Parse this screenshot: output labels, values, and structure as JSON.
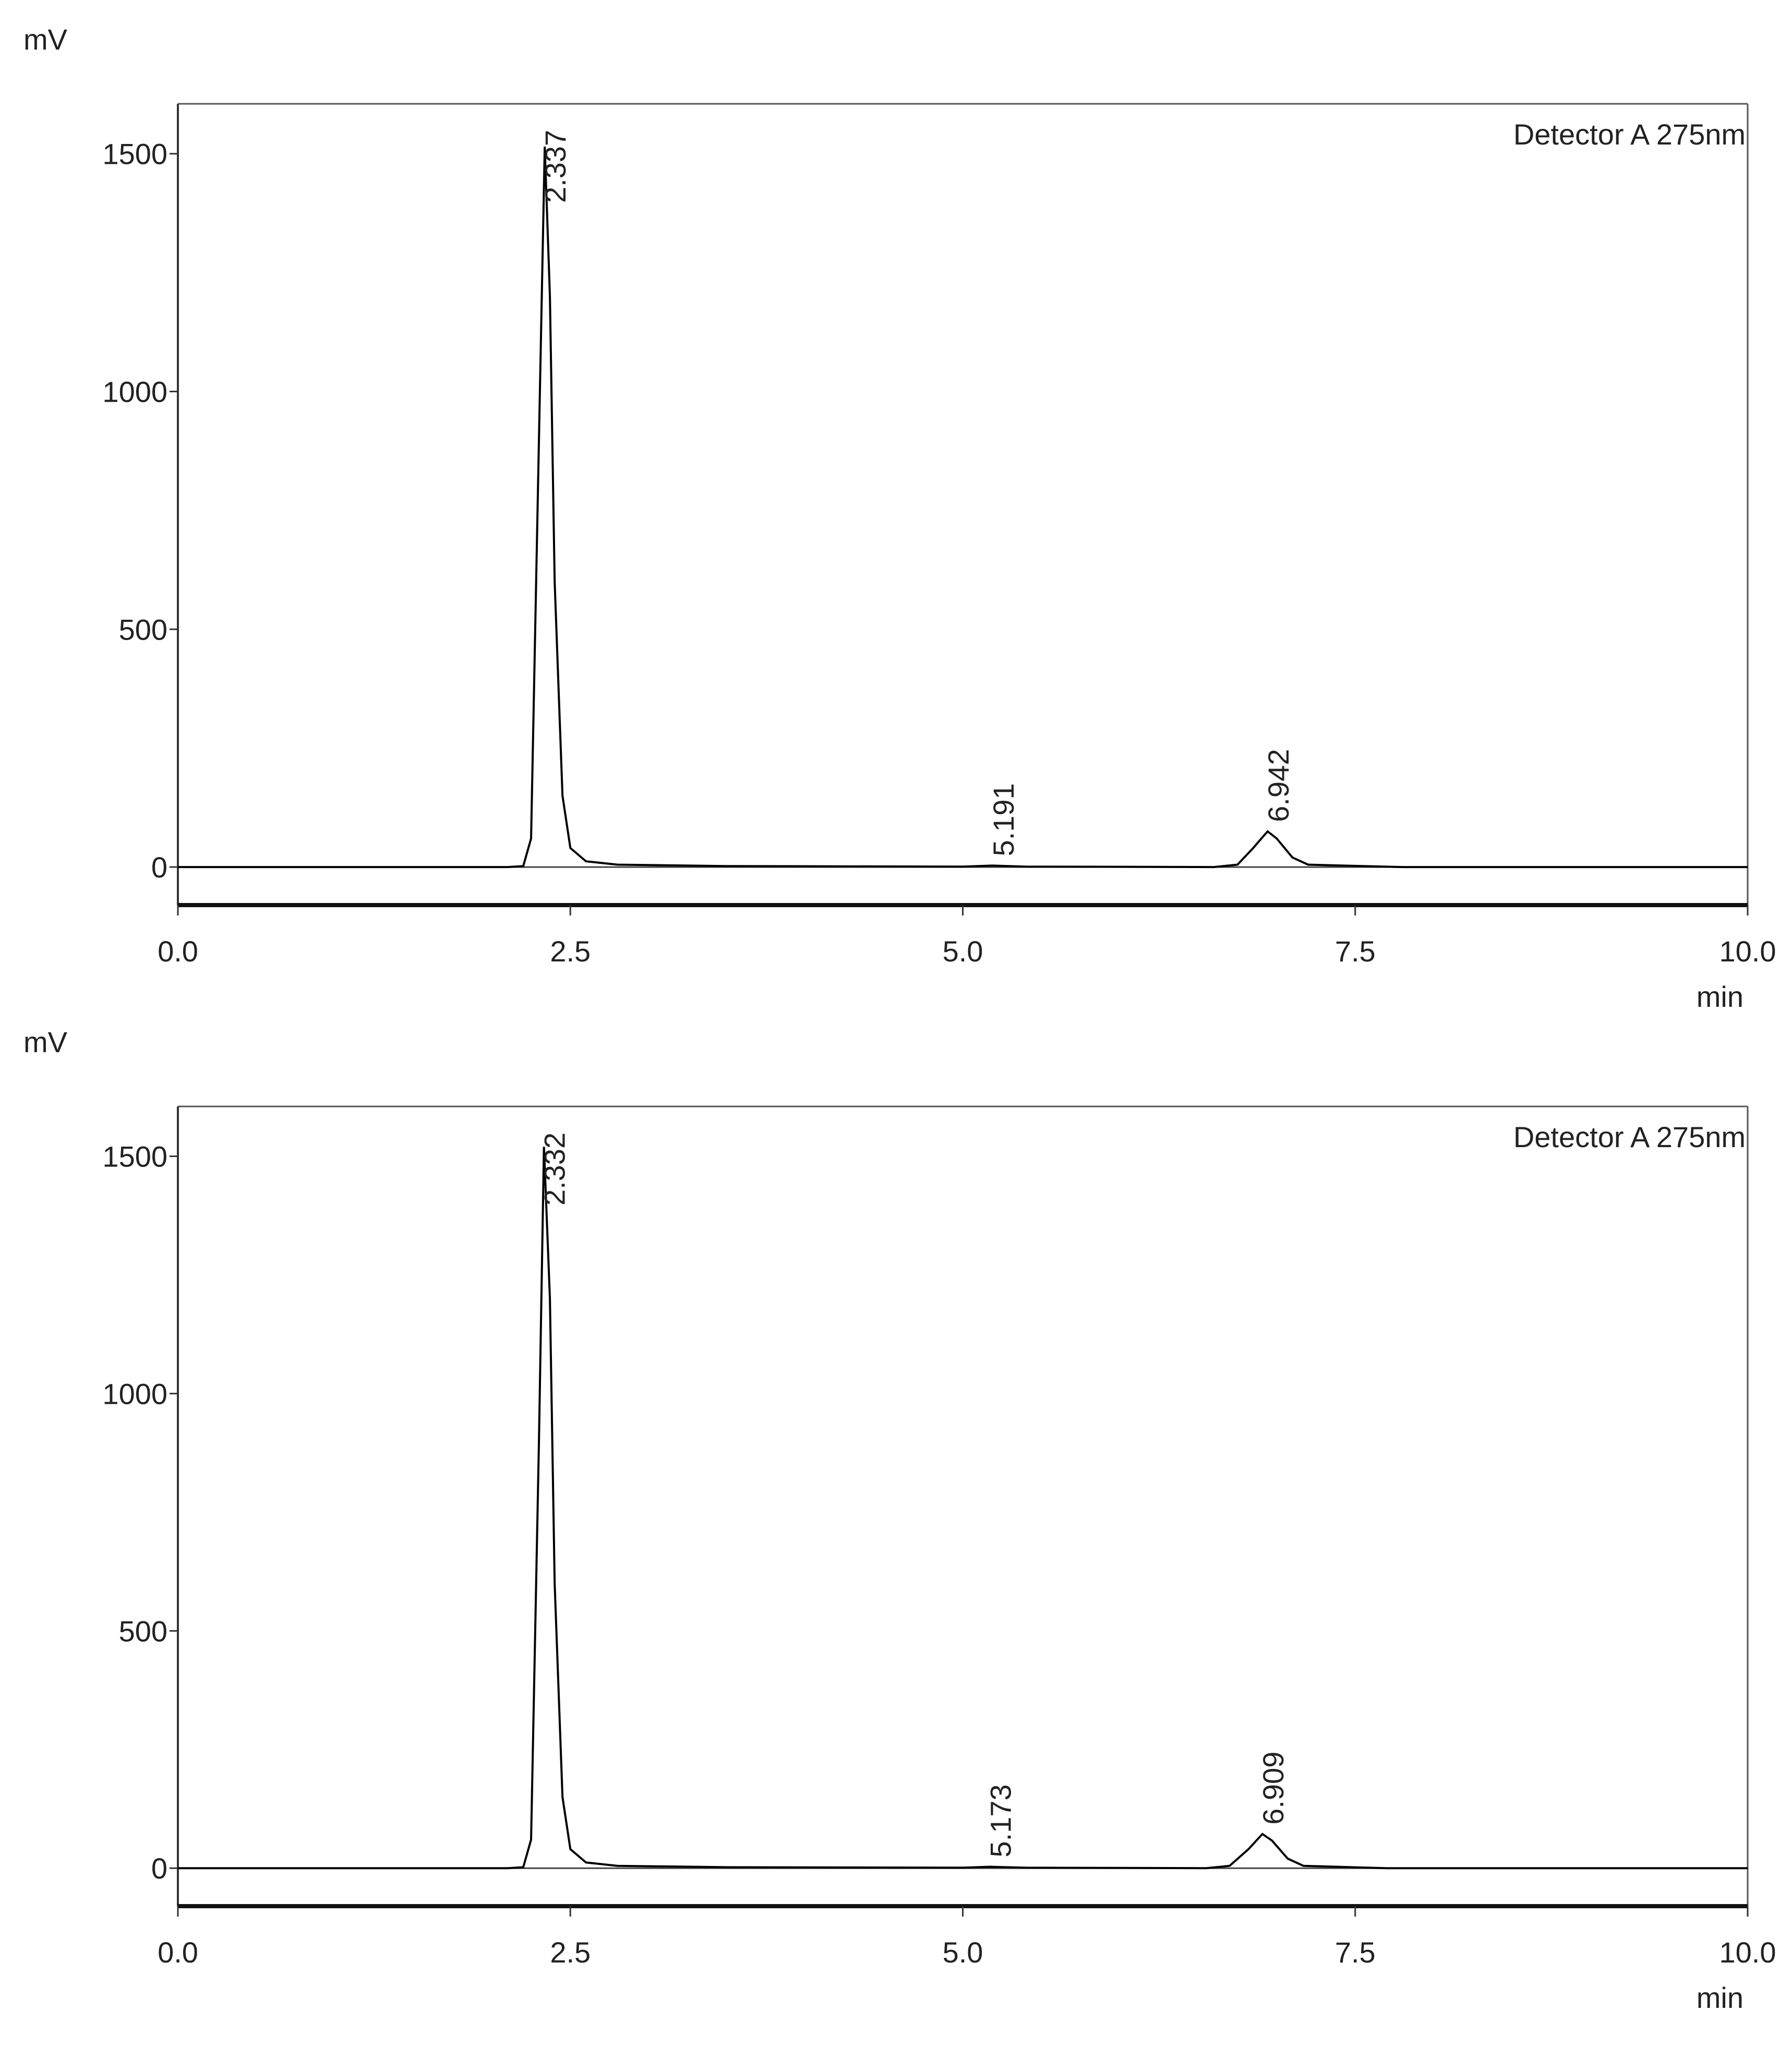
{
  "chart_data": [
    {
      "type": "line",
      "y_label": "mV",
      "x_label": "min",
      "annotation": "Detector A 275nm",
      "color": "#000000",
      "x": [
        0,
        2.1,
        2.2,
        2.25,
        2.3,
        2.337,
        2.37,
        2.4,
        2.45,
        2.5,
        2.6,
        2.8,
        3.5,
        5.0,
        5.191,
        5.4,
        6.6,
        6.75,
        6.85,
        6.942,
        7.0,
        7.1,
        7.2,
        7.8,
        10
      ],
      "values": [
        0,
        0,
        2,
        60,
        900,
        1515,
        1200,
        600,
        150,
        40,
        12,
        5,
        2,
        1,
        3,
        1,
        0,
        5,
        40,
        75,
        60,
        20,
        5,
        0,
        0
      ],
      "peak_labels": [
        2.337,
        5.191,
        6.942
      ],
      "xlim": [
        0,
        10
      ],
      "ylim": [
        -80,
        1605
      ],
      "xticks": [
        {
          "value": 0,
          "label": "0.0"
        },
        2.5,
        {
          "value": 5,
          "label": "5.0"
        },
        7.5,
        {
          "value": 10,
          "label": "10.0"
        }
      ],
      "yticks": [
        0,
        500,
        1000,
        1500
      ]
    },
    {
      "type": "line",
      "y_label": "mV",
      "x_label": "min",
      "annotation": "Detector A 275nm",
      "color": "#000000",
      "x": [
        0,
        2.1,
        2.2,
        2.25,
        2.3,
        2.332,
        2.37,
        2.4,
        2.45,
        2.5,
        2.6,
        2.8,
        3.5,
        5.0,
        5.173,
        5.4,
        6.55,
        6.7,
        6.82,
        6.909,
        6.97,
        7.07,
        7.17,
        7.7,
        10
      ],
      "values": [
        0,
        0,
        2,
        60,
        900,
        1520,
        1200,
        600,
        150,
        40,
        12,
        5,
        2,
        1,
        3,
        1,
        0,
        5,
        40,
        72,
        58,
        20,
        5,
        0,
        0
      ],
      "peak_labels": [
        2.332,
        5.173,
        6.909
      ],
      "xlim": [
        0,
        10
      ],
      "ylim": [
        -80,
        1605
      ],
      "xticks": [
        {
          "value": 0,
          "label": "0.0"
        },
        2.5,
        {
          "value": 5,
          "label": "5.0"
        },
        7.5,
        {
          "value": 10,
          "label": "10.0"
        }
      ],
      "yticks": [
        0,
        500,
        1000,
        1500
      ]
    }
  ]
}
